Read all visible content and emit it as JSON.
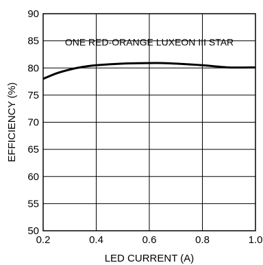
{
  "chart_data": {
    "type": "line",
    "xlabel": "LED CURRENT (A)",
    "ylabel": "EFFICIENCY (%)",
    "annotation": "ONE RED-ORANGE LUXEON III STAR",
    "xlim": [
      0.2,
      1.0
    ],
    "ylim": [
      50,
      90
    ],
    "x_ticks": [
      "0.2",
      "0.4",
      "0.6",
      "0.8",
      "1.0"
    ],
    "y_ticks": [
      "50",
      "55",
      "60",
      "65",
      "70",
      "75",
      "80",
      "85",
      "90"
    ],
    "grid": true,
    "series": [
      {
        "x": [
          0.2,
          0.25,
          0.3,
          0.35,
          0.4,
          0.5,
          0.6,
          0.65,
          0.7,
          0.8,
          0.9,
          1.0
        ],
        "y": [
          78.0,
          79.0,
          79.7,
          80.2,
          80.5,
          80.8,
          80.9,
          80.9,
          80.8,
          80.5,
          80.1,
          80.1
        ]
      }
    ],
    "line_color": "#000000"
  }
}
